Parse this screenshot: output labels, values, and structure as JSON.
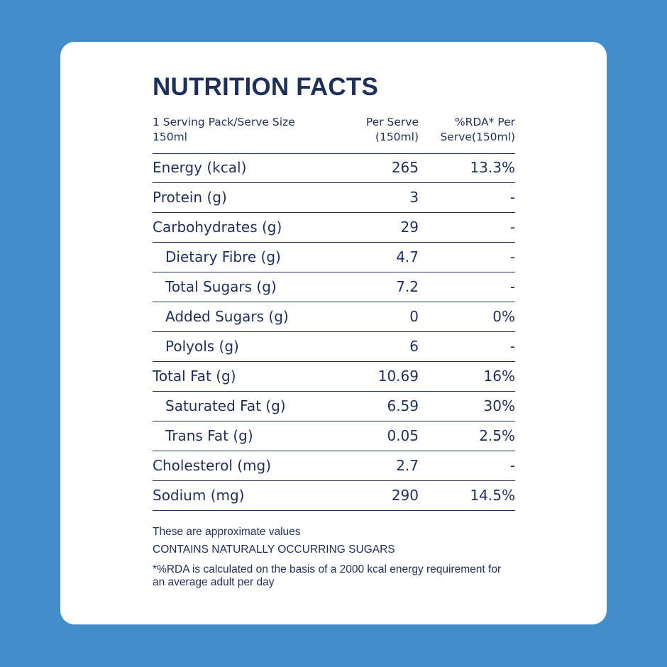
{
  "colors": {
    "background": "#428ecb",
    "card": "#ffffff",
    "text": "#1f2f5c"
  },
  "title": "NUTRITION FACTS",
  "header": {
    "label": "1 Serving Pack/Serve Size 150ml",
    "per_serve": "Per Serve\n(150ml)",
    "rda": "%RDA* Per\nServe(150ml)"
  },
  "rows": [
    {
      "label": "Energy (kcal)",
      "per_serve": "265",
      "rda": "13.3%"
    },
    {
      "label": "Protein (g)",
      "per_serve": "3",
      "rda": "-"
    },
    {
      "label": "Carbohydrates (g)",
      "per_serve": "29",
      "rda": "-"
    },
    {
      "label": "Dietary Fibre (g)",
      "per_serve": "4.7",
      "rda": "-"
    },
    {
      "label": "Total Sugars (g)",
      "per_serve": "7.2",
      "rda": "-"
    },
    {
      "label": "Added Sugars (g)",
      "per_serve": "0",
      "rda": "0%"
    },
    {
      "label": "Polyols (g)",
      "per_serve": "6",
      "rda": "-"
    },
    {
      "label": "Total Fat (g)",
      "per_serve": "10.69",
      "rda": "16%"
    },
    {
      "label": "Saturated Fat (g)",
      "per_serve": "6.59",
      "rda": "30%"
    },
    {
      "label": "Trans Fat (g)",
      "per_serve": "0.05",
      "rda": "2.5%"
    },
    {
      "label": "Cholesterol (mg)",
      "per_serve": "2.7",
      "rda": "-"
    },
    {
      "label": "Sodium (mg)",
      "per_serve": "290",
      "rda": "14.5%"
    }
  ],
  "notes": {
    "approx": "These are approximate values",
    "sugars": "CONTAINS NATURALLY OCCURRING SUGARS",
    "rda": "*%RDA is calculated on the basis of a 2000 kcal energy requirement for an average adult per day"
  }
}
